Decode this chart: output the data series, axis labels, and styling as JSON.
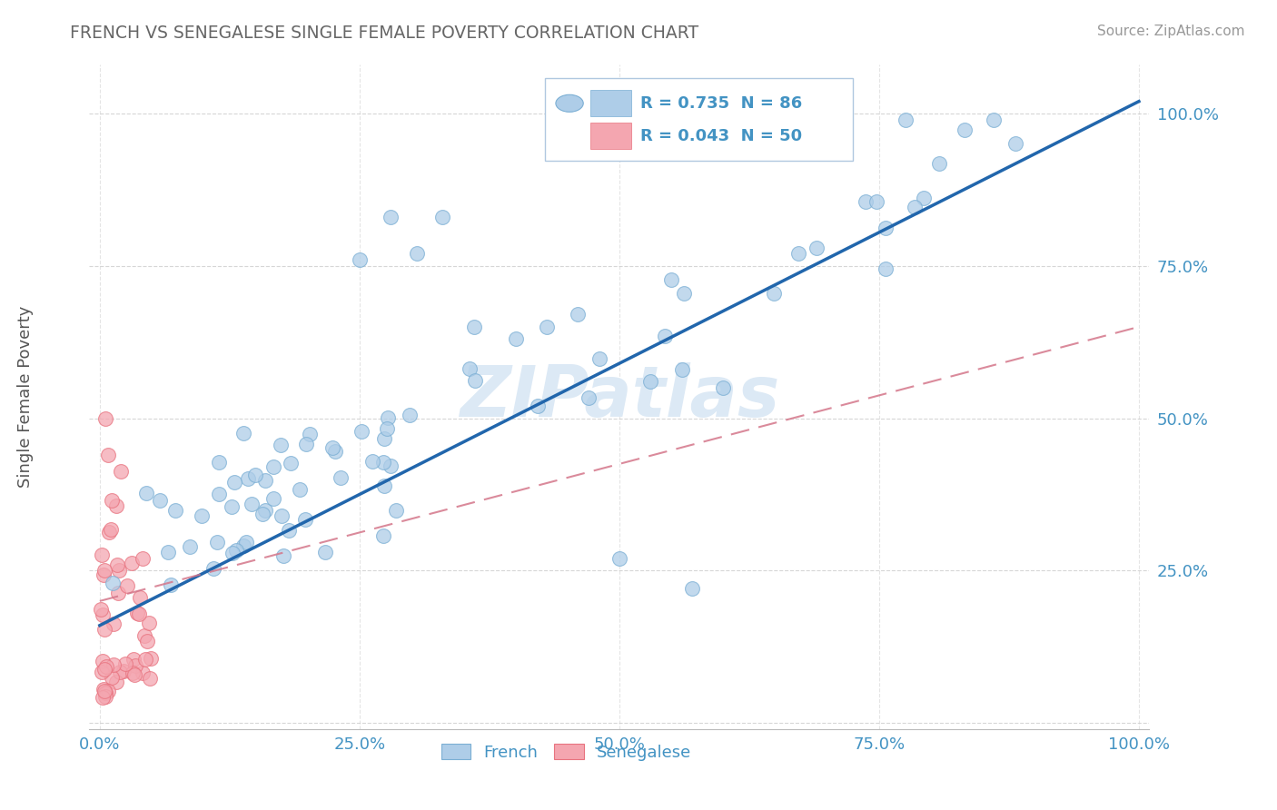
{
  "title": "FRENCH VS SENEGALESE SINGLE FEMALE POVERTY CORRELATION CHART",
  "source": "Source: ZipAtlas.com",
  "ylabel": "Single Female Poverty",
  "french_R": 0.735,
  "french_N": 86,
  "senegalese_R": 0.043,
  "senegalese_N": 50,
  "french_color": "#aecde8",
  "french_edge": "#7bafd4",
  "senegalese_color": "#f4a6b0",
  "senegalese_edge": "#e8737f",
  "trend_french_color": "#2166ac",
  "trend_senegalese_color": "#d4768a",
  "background_color": "#ffffff",
  "grid_color": "#cccccc",
  "title_color": "#666666",
  "tick_color": "#4393c3",
  "axis_color": "#bbbbbb",
  "watermark_color": "#dce9f5",
  "legend_text_color": "#4393c3"
}
